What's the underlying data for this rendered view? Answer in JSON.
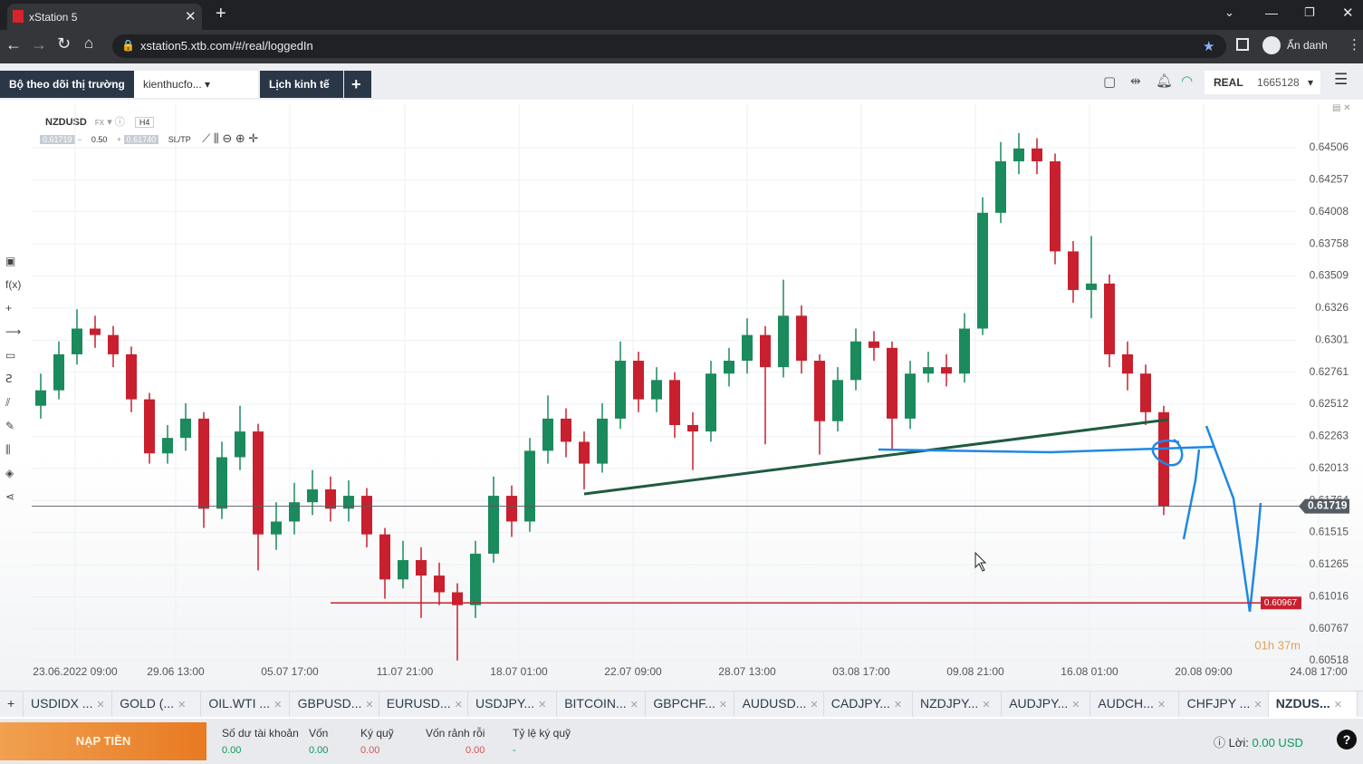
{
  "browser": {
    "tab_title": "xStation 5",
    "url": "xstation5.xtb.com/#/real/loggedIn",
    "profile": "Ẩn danh"
  },
  "app_tabs": [
    "Bộ theo dõi thị trường",
    "kienthucfo...",
    "Lịch kinh tế"
  ],
  "account": {
    "mode": "REAL",
    "id": "1665128"
  },
  "chart_header": {
    "symbol": "NZDUSD",
    "market": "FX",
    "timeframe": "H4",
    "bid": "0.61719",
    "volume": "0.50",
    "ask": "0.61740",
    "sltp": "SL/TP"
  },
  "toolbar": {
    "fx": "f(x)"
  },
  "chart_data": {
    "type": "candlestick",
    "up_color": "#1b8a5c",
    "down_color": "#c8202f",
    "open": [
      0.625,
      0.6262,
      0.629,
      0.631,
      0.6305,
      0.629,
      0.6255,
      0.6213,
      0.6225,
      0.624,
      0.617,
      0.621,
      0.623,
      0.615,
      0.616,
      0.6175,
      0.6185,
      0.617,
      0.618,
      0.615,
      0.6115,
      0.613,
      0.6118,
      0.6105,
      0.6095,
      0.6135,
      0.618,
      0.616,
      0.6215,
      0.624,
      0.6222,
      0.6205,
      0.624,
      0.6285,
      0.6255,
      0.627,
      0.6235,
      0.623,
      0.6275,
      0.6285,
      0.6305,
      0.628,
      0.632,
      0.6285,
      0.6238,
      0.627,
      0.63,
      0.6295,
      0.624,
      0.6275,
      0.628,
      0.6275,
      0.631,
      0.64,
      0.644,
      0.645,
      0.644,
      0.637,
      0.634,
      0.6345,
      0.629,
      0.6275,
      0.6245
    ],
    "high": [
      0.6275,
      0.63,
      0.6325,
      0.632,
      0.6312,
      0.6296,
      0.626,
      0.6235,
      0.6252,
      0.6245,
      0.6222,
      0.625,
      0.6236,
      0.6175,
      0.619,
      0.62,
      0.6195,
      0.6192,
      0.6186,
      0.6155,
      0.6145,
      0.614,
      0.6128,
      0.6112,
      0.6145,
      0.6195,
      0.6188,
      0.6225,
      0.6258,
      0.6248,
      0.623,
      0.6252,
      0.63,
      0.6292,
      0.628,
      0.6276,
      0.6245,
      0.6285,
      0.6295,
      0.6318,
      0.6312,
      0.6348,
      0.6328,
      0.629,
      0.628,
      0.631,
      0.6308,
      0.63,
      0.6285,
      0.6292,
      0.629,
      0.6322,
      0.6412,
      0.6455,
      0.6462,
      0.6458,
      0.6446,
      0.6378,
      0.6382,
      0.6352,
      0.63,
      0.6282,
      0.625
    ],
    "low": [
      0.624,
      0.6255,
      0.6282,
      0.6295,
      0.628,
      0.6245,
      0.6205,
      0.6205,
      0.6215,
      0.6155,
      0.6162,
      0.62,
      0.6122,
      0.6138,
      0.615,
      0.6165,
      0.616,
      0.616,
      0.614,
      0.61,
      0.6108,
      0.6085,
      0.6095,
      0.6052,
      0.6085,
      0.6128,
      0.6148,
      0.6152,
      0.6205,
      0.621,
      0.6185,
      0.6198,
      0.6232,
      0.6245,
      0.6245,
      0.6225,
      0.62,
      0.6222,
      0.6265,
      0.6275,
      0.622,
      0.6272,
      0.6275,
      0.6212,
      0.623,
      0.6262,
      0.6285,
      0.6215,
      0.6232,
      0.6268,
      0.6265,
      0.6268,
      0.6305,
      0.6392,
      0.643,
      0.643,
      0.636,
      0.633,
      0.6318,
      0.628,
      0.6262,
      0.6235,
      0.6165
    ],
    "close": [
      0.6262,
      0.629,
      0.631,
      0.6305,
      0.629,
      0.6255,
      0.6213,
      0.6225,
      0.624,
      0.617,
      0.621,
      0.623,
      0.615,
      0.616,
      0.6175,
      0.6185,
      0.617,
      0.618,
      0.615,
      0.6115,
      0.613,
      0.6118,
      0.6105,
      0.6095,
      0.6135,
      0.618,
      0.616,
      0.6215,
      0.624,
      0.6222,
      0.6205,
      0.624,
      0.6285,
      0.6255,
      0.627,
      0.6235,
      0.623,
      0.6275,
      0.6285,
      0.6305,
      0.628,
      0.632,
      0.6285,
      0.6238,
      0.627,
      0.63,
      0.6295,
      0.624,
      0.6275,
      0.628,
      0.6275,
      0.631,
      0.64,
      0.644,
      0.645,
      0.644,
      0.637,
      0.634,
      0.6345,
      0.629,
      0.6275,
      0.6245,
      0.6172
    ],
    "xlim": [
      0,
      72
    ],
    "xticks": [
      {
        "value": 2.4,
        "label": "23.06.2022 09:00"
      },
      {
        "value": 7.95,
        "label": "29.06 13:00"
      },
      {
        "value": 14.25,
        "label": "05.07 17:00"
      },
      {
        "value": 20.6,
        "label": "11.07 21:00"
      },
      {
        "value": 26.9,
        "label": "18.07 01:00"
      },
      {
        "value": 33.2,
        "label": "22.07 09:00"
      },
      {
        "value": 39.5,
        "label": "28.07 13:00"
      },
      {
        "value": 45.8,
        "label": "03.08 17:00"
      },
      {
        "value": 52.1,
        "label": "09.08 21:00"
      },
      {
        "value": 58.4,
        "label": "16.08 01:00"
      },
      {
        "value": 64.7,
        "label": "20.08 09:00"
      },
      {
        "value": 71.05,
        "label": "24.08 17:00"
      }
    ],
    "ylim": [
      0.60476,
      0.64844
    ],
    "yticks": [
      0.64506,
      0.64257,
      0.64008,
      0.63758,
      0.63509,
      0.6326,
      0.6301,
      0.62761,
      0.62512,
      0.62263,
      0.62013,
      0.61764,
      0.61515,
      0.61265,
      0.61016,
      0.60767,
      0.60518
    ],
    "grid": true,
    "price_line": {
      "value": 0.61719,
      "label": "0.61719",
      "color": "#555b63"
    },
    "level_line": {
      "value": 0.60967,
      "label": "0.60967",
      "color": "#c8202f"
    },
    "countdown": "01h 37m"
  },
  "instrument_tabs": [
    "USDIDX ...",
    "GOLD (...",
    "OIL.WTI ...",
    "GBPUSD...",
    "EURUSD...",
    "USDJPY...",
    "BITCOIN...",
    "GBPCHF...",
    "AUDUSD...",
    "CADJPY...",
    "NZDJPY...",
    "AUDJPY...",
    "AUDCH...",
    "CHFJPY ...",
    "NZDUS..."
  ],
  "bottom_bar": {
    "deposit": "NẠP TIỀN",
    "stats": [
      {
        "label": "Số dư tài khoản",
        "value": "0.00"
      },
      {
        "label": "Vốn",
        "value": "0.00"
      },
      {
        "label": "Ký quỹ",
        "value": "0.00"
      },
      {
        "label": "Vốn rảnh rỗi",
        "value": "0.00"
      },
      {
        "label": "Tỷ lệ ký quỹ",
        "value": "-"
      }
    ],
    "profit_label": "Lời:",
    "profit_value": "0.00 USD"
  }
}
